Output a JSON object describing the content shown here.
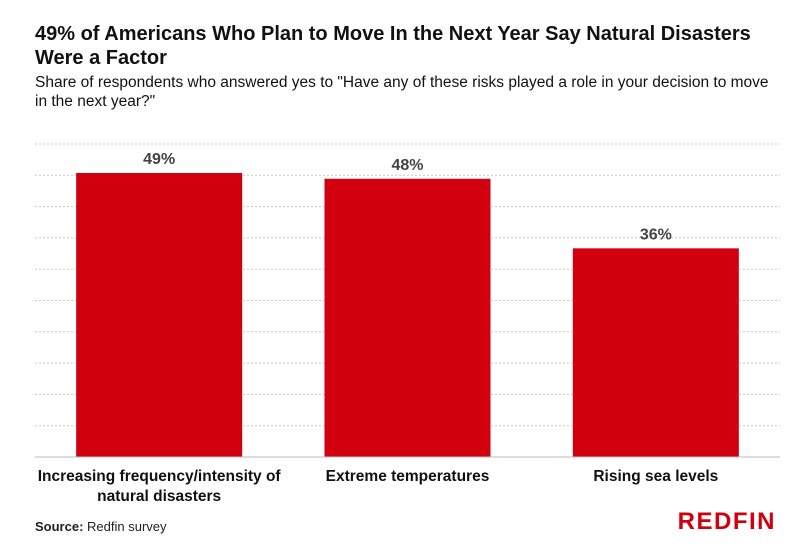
{
  "header": {
    "title": "49% of Americans Who Plan to Move In the Next Year Say Natural Disasters Were a Factor",
    "subtitle": "Share of respondents who answered yes to \"Have any of these risks played a role in your decision to move in the next year?\""
  },
  "footer": {
    "source_label": "Source:",
    "source_text": "Redfin survey",
    "logo": "REDFIN"
  },
  "colors": {
    "bar": "#d2000e",
    "gridline": "#c8c8c8",
    "logo": "#d2000e"
  },
  "chart_data": {
    "type": "bar",
    "title": "49% of Americans Who Plan to Move In the Next Year Say Natural Disasters Were a Factor",
    "subtitle": "Share of respondents who answered yes to \"Have any of these risks played a role in your decision to move in the next year?\"",
    "xlabel": "",
    "ylabel": "",
    "categories": [
      "Increasing frequency/intensity of natural disasters",
      "Extreme temperatures",
      "Rising sea levels"
    ],
    "values": [
      49,
      48,
      36
    ],
    "data_labels": [
      "49%",
      "48%",
      "36%"
    ],
    "ylim": [
      0,
      54
    ],
    "grid": true,
    "legend": "none"
  }
}
